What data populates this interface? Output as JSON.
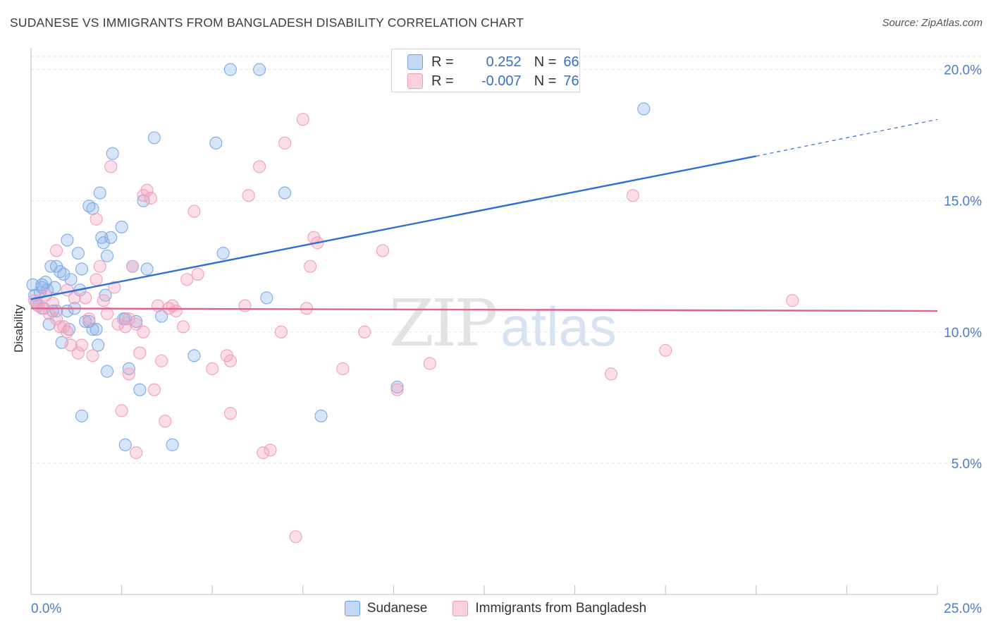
{
  "chart_data": {
    "type": "scatter",
    "title": "SUDANESE VS IMMIGRANTS FROM BANGLADESH DISABILITY CORRELATION CHART",
    "source": "Source: ZipAtlas.com",
    "xlabel": "",
    "ylabel": "Disability",
    "xlim": [
      0,
      25
    ],
    "ylim": [
      0,
      20.5
    ],
    "x_tick_labels": [
      "0.0%",
      "25.0%"
    ],
    "y_ticks": [
      5,
      10,
      15,
      20
    ],
    "y_tick_labels": [
      "5.0%",
      "10.0%",
      "15.0%",
      "20.0%"
    ],
    "watermark": {
      "zip": "ZIP",
      "atlas": "atlas"
    },
    "legend": {
      "r_label": "R =",
      "n_label": "N =",
      "entries": [
        {
          "name": "Sudanese",
          "r": "0.252",
          "n": "66",
          "color": "#6fa3e8",
          "line_color": "#2f6fcf"
        },
        {
          "name": "Immigrants from Bangladesh",
          "r": "-0.007",
          "n": "76",
          "color": "#f29bb9",
          "line_color": "#e0608e"
        }
      ]
    },
    "series": [
      {
        "name": "Sudanese",
        "trend": {
          "x0": 0,
          "y0": 11.25,
          "x1": 20,
          "y1": 16.7,
          "dash_to_x": 25,
          "dash_to_y": 18.1
        },
        "points": [
          [
            0.05,
            11.8
          ],
          [
            0.1,
            11.4
          ],
          [
            0.15,
            11.1
          ],
          [
            0.2,
            11.0
          ],
          [
            0.25,
            11.5
          ],
          [
            0.3,
            11.7
          ],
          [
            0.35,
            10.9
          ],
          [
            0.4,
            11.9
          ],
          [
            0.45,
            11.6
          ],
          [
            0.5,
            10.3
          ],
          [
            0.55,
            12.5
          ],
          [
            0.6,
            10.8
          ],
          [
            0.65,
            11.7
          ],
          [
            0.7,
            10.8
          ],
          [
            0.8,
            12.3
          ],
          [
            0.85,
            9.6
          ],
          [
            0.9,
            12.2
          ],
          [
            1.0,
            10.8
          ],
          [
            1.05,
            10.1
          ],
          [
            1.1,
            12.0
          ],
          [
            1.2,
            10.9
          ],
          [
            1.3,
            13.0
          ],
          [
            1.35,
            11.6
          ],
          [
            1.4,
            12.4
          ],
          [
            1.5,
            10.4
          ],
          [
            1.6,
            14.8
          ],
          [
            1.7,
            14.7
          ],
          [
            1.7,
            10.1
          ],
          [
            1.8,
            10.1
          ],
          [
            1.85,
            9.5
          ],
          [
            1.9,
            15.3
          ],
          [
            1.95,
            13.6
          ],
          [
            2.0,
            13.4
          ],
          [
            2.05,
            11.4
          ],
          [
            2.1,
            12.9
          ],
          [
            2.2,
            13.6
          ],
          [
            2.25,
            16.8
          ],
          [
            2.5,
            14.0
          ],
          [
            2.55,
            10.5
          ],
          [
            2.6,
            5.7
          ],
          [
            2.7,
            8.6
          ],
          [
            2.8,
            12.5
          ],
          [
            2.9,
            10.4
          ],
          [
            3.0,
            7.8
          ],
          [
            3.1,
            15.0
          ],
          [
            3.2,
            12.4
          ],
          [
            3.4,
            17.4
          ],
          [
            3.6,
            10.6
          ],
          [
            3.9,
            5.7
          ],
          [
            4.5,
            9.1
          ],
          [
            5.1,
            17.2
          ],
          [
            5.3,
            13.0
          ],
          [
            5.5,
            20.0
          ],
          [
            6.3,
            20.0
          ],
          [
            6.5,
            11.3
          ],
          [
            7.0,
            15.3
          ],
          [
            8.0,
            6.8
          ],
          [
            10.1,
            7.9
          ],
          [
            16.9,
            18.5
          ],
          [
            1.4,
            6.8
          ],
          [
            2.1,
            8.5
          ],
          [
            1.6,
            10.4
          ],
          [
            0.3,
            11.8
          ],
          [
            1.0,
            13.5
          ],
          [
            0.7,
            12.5
          ],
          [
            2.6,
            10.5
          ]
        ]
      },
      {
        "name": "Immigrants from Bangladesh",
        "trend": {
          "x0": 0,
          "y0": 10.9,
          "x1": 25,
          "y1": 10.8
        },
        "points": [
          [
            0.1,
            11.2
          ],
          [
            0.2,
            11.0
          ],
          [
            0.3,
            10.9
          ],
          [
            0.4,
            11.4
          ],
          [
            0.5,
            10.7
          ],
          [
            0.6,
            11.1
          ],
          [
            0.7,
            10.5
          ],
          [
            0.7,
            13.1
          ],
          [
            0.8,
            10.2
          ],
          [
            0.9,
            10.2
          ],
          [
            1.0,
            10.0
          ],
          [
            1.0,
            11.6
          ],
          [
            1.1,
            9.5
          ],
          [
            1.2,
            11.3
          ],
          [
            1.3,
            9.2
          ],
          [
            1.4,
            9.5
          ],
          [
            1.5,
            11.3
          ],
          [
            1.6,
            10.5
          ],
          [
            1.7,
            9.1
          ],
          [
            1.8,
            12.0
          ],
          [
            1.8,
            14.3
          ],
          [
            1.9,
            12.5
          ],
          [
            2.0,
            11.2
          ],
          [
            2.1,
            10.7
          ],
          [
            2.2,
            16.3
          ],
          [
            2.3,
            11.7
          ],
          [
            2.4,
            10.3
          ],
          [
            2.5,
            7.0
          ],
          [
            2.6,
            10.2
          ],
          [
            2.7,
            10.5
          ],
          [
            2.7,
            8.4
          ],
          [
            2.8,
            12.5
          ],
          [
            2.9,
            10.3
          ],
          [
            2.9,
            5.4
          ],
          [
            3.0,
            9.2
          ],
          [
            3.1,
            10.0
          ],
          [
            3.1,
            15.2
          ],
          [
            3.2,
            15.4
          ],
          [
            3.3,
            15.1
          ],
          [
            3.4,
            7.8
          ],
          [
            3.5,
            11.0
          ],
          [
            3.6,
            8.9
          ],
          [
            3.7,
            6.6
          ],
          [
            3.8,
            10.9
          ],
          [
            3.9,
            11.0
          ],
          [
            4.0,
            10.8
          ],
          [
            4.2,
            10.2
          ],
          [
            4.3,
            12.0
          ],
          [
            4.5,
            14.6
          ],
          [
            4.6,
            12.2
          ],
          [
            5.0,
            8.6
          ],
          [
            5.4,
            9.1
          ],
          [
            5.5,
            6.9
          ],
          [
            5.5,
            8.9
          ],
          [
            5.9,
            11.0
          ],
          [
            6.0,
            15.2
          ],
          [
            6.3,
            16.3
          ],
          [
            6.4,
            5.4
          ],
          [
            6.6,
            5.5
          ],
          [
            6.9,
            10.0
          ],
          [
            7.0,
            17.2
          ],
          [
            7.3,
            2.2
          ],
          [
            7.5,
            18.1
          ],
          [
            7.6,
            10.9
          ],
          [
            7.7,
            12.5
          ],
          [
            7.8,
            13.6
          ],
          [
            7.9,
            13.4
          ],
          [
            8.6,
            8.6
          ],
          [
            9.2,
            10.0
          ],
          [
            9.7,
            13.1
          ],
          [
            10.1,
            7.8
          ],
          [
            11.0,
            8.8
          ],
          [
            16.0,
            8.4
          ],
          [
            16.6,
            15.2
          ],
          [
            17.5,
            9.3
          ],
          [
            21.0,
            11.2
          ]
        ]
      }
    ]
  }
}
